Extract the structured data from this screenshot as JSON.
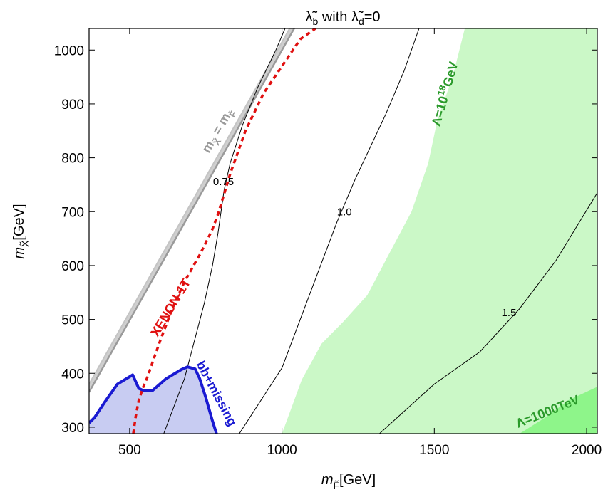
{
  "chart_data": {
    "type": "contour",
    "title": "λ̃b with λ̃d=0",
    "title_parts": {
      "sym1": "λ̃",
      "sub1": "b",
      "mid": " with ",
      "sym2": "λ̃",
      "sub2": "d",
      "end": "=0"
    },
    "xlabel": {
      "main": "m",
      "sub": "F̃",
      "unit": "[GeV]"
    },
    "ylabel": {
      "main": "m",
      "sub": "X̃",
      "unit": "[GeV]"
    },
    "xlim": [
      367,
      2035
    ],
    "ylim": [
      288,
      1040
    ],
    "x_ticks": [
      500,
      1000,
      1500,
      2000
    ],
    "y_ticks": [
      300,
      400,
      500,
      600,
      700,
      800,
      900,
      1000
    ],
    "grid": false,
    "colors": {
      "light_green": "#cbf8c7",
      "dark_green": "#8ef58a",
      "blue_fill": "#c8ccf2",
      "blue_line": "#1a1ad2",
      "xenon": "#e01010",
      "diag_line": "#9a9a9a",
      "diag_band": "#cfcfcf",
      "green_text": "#2a9a2a"
    },
    "regions": {
      "lambda_1e18": {
        "label": {
          "prefix": "Λ=10",
          "exp": "18",
          "suffix": "GeV"
        },
        "boundary": [
          [
            1000,
            288
          ],
          [
            1065,
            388
          ],
          [
            1130,
            455
          ],
          [
            1200,
            495
          ],
          [
            1280,
            545
          ],
          [
            1350,
            620
          ],
          [
            1425,
            700
          ],
          [
            1480,
            790
          ],
          [
            1510,
            870
          ],
          [
            1560,
            950
          ],
          [
            1600,
            1040
          ]
        ]
      },
      "lambda_1000TeV": {
        "label": "Λ=1000TeV",
        "boundary": [
          [
            1780,
            288
          ],
          [
            1870,
            320
          ],
          [
            1940,
            350
          ],
          [
            2035,
            375
          ]
        ]
      },
      "bb_missing": {
        "label": "bb+missing",
        "boundary": [
          [
            367,
            308
          ],
          [
            385,
            318
          ],
          [
            420,
            348
          ],
          [
            460,
            380
          ],
          [
            510,
            397
          ],
          [
            530,
            372
          ],
          [
            545,
            368
          ],
          [
            575,
            368
          ],
          [
            620,
            390
          ],
          [
            670,
            407
          ],
          [
            690,
            412
          ],
          [
            715,
            408
          ],
          [
            730,
            390
          ],
          [
            750,
            355
          ],
          [
            770,
            315
          ],
          [
            785,
            288
          ]
        ]
      },
      "xenon_1t": {
        "label": "XENON-1T",
        "curve": [
          [
            512,
            288
          ],
          [
            520,
            320
          ],
          [
            530,
            350
          ],
          [
            545,
            375
          ],
          [
            560,
            395
          ],
          [
            575,
            420
          ],
          [
            600,
            460
          ],
          [
            640,
            520
          ],
          [
            680,
            570
          ],
          [
            730,
            620
          ],
          [
            770,
            665
          ],
          [
            790,
            695
          ],
          [
            830,
            770
          ],
          [
            880,
            850
          ],
          [
            940,
            920
          ],
          [
            1000,
            970
          ],
          [
            1060,
            1020
          ],
          [
            1110,
            1040
          ]
        ]
      },
      "diagonal": {
        "label": {
          "lhs": "m",
          "lhs_sub": "X̃",
          "eq": " = ",
          "rhs": "m",
          "rhs_sub": "F̃"
        },
        "line1": [
          [
            367,
            365
          ],
          [
            1040,
            1040
          ]
        ],
        "line2": [
          [
            367,
            380
          ],
          [
            1025,
            1040
          ]
        ]
      }
    },
    "contours": [
      {
        "label": "0.75",
        "label_at": [
          808,
          756
        ],
        "points": [
          [
            612,
            288
          ],
          [
            680,
            390
          ],
          [
            745,
            530
          ],
          [
            772,
            600
          ],
          [
            790,
            660
          ],
          [
            810,
            740
          ],
          [
            830,
            790
          ],
          [
            870,
            860
          ],
          [
            920,
            930
          ],
          [
            980,
            1000
          ],
          [
            1010,
            1040
          ]
        ]
      },
      {
        "label": "1.0",
        "label_at": [
          1205,
          700
        ],
        "points": [
          [
            860,
            288
          ],
          [
            1000,
            410
          ],
          [
            1100,
            560
          ],
          [
            1180,
            680
          ],
          [
            1240,
            760
          ],
          [
            1340,
            880
          ],
          [
            1400,
            960
          ],
          [
            1450,
            1040
          ]
        ]
      },
      {
        "label": "1.5",
        "label_at": [
          1745,
          513
        ],
        "points": [
          [
            1320,
            288
          ],
          [
            1500,
            380
          ],
          [
            1650,
            440
          ],
          [
            1780,
            520
          ],
          [
            1900,
            610
          ],
          [
            2035,
            735
          ]
        ]
      }
    ]
  }
}
